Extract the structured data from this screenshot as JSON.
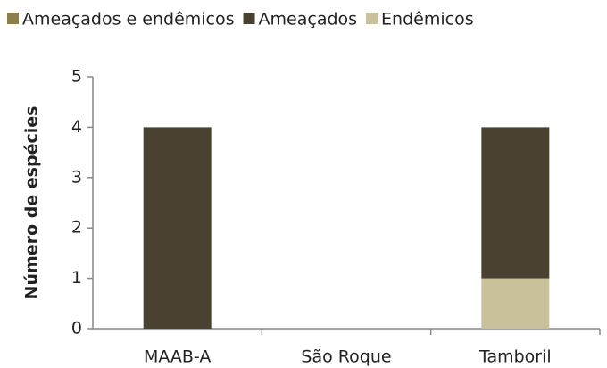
{
  "chart_data": {
    "type": "stacked_bar",
    "y_label": "Número de espécies",
    "categories": [
      "MAAB-A",
      "São Roque",
      "Tamboril"
    ],
    "series": [
      {
        "name": "Ameaçados e endêmicos",
        "color": "#8c7f4c",
        "values": [
          0,
          0,
          0
        ]
      },
      {
        "name": "Ameaçados",
        "color": "#4a4230",
        "values": [
          4,
          0,
          3
        ]
      },
      {
        "name": "Endêmicos",
        "color": "#c9c19b",
        "values": [
          0,
          0,
          1
        ]
      }
    ],
    "ylim": [
      0,
      5
    ],
    "yticks": [
      0,
      1,
      2,
      3,
      4,
      5
    ],
    "grid": false,
    "legend": "top"
  }
}
